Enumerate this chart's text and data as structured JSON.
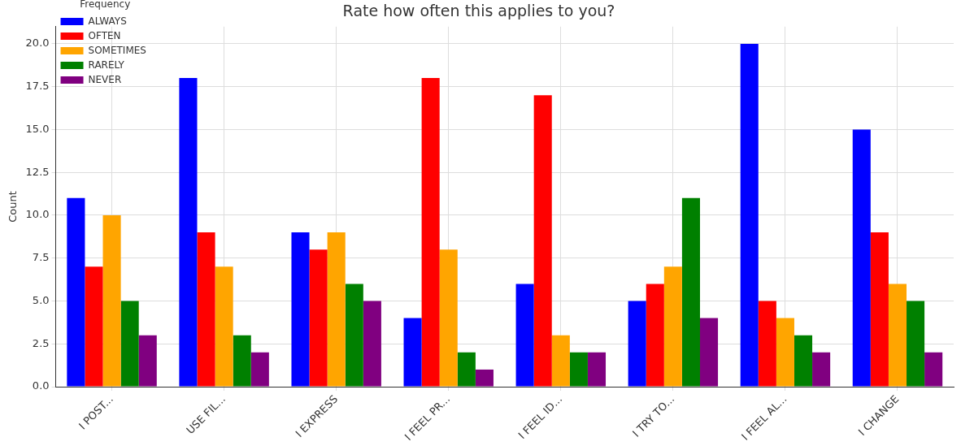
{
  "chart_data": {
    "type": "bar",
    "title": "Rate how often this applies to you?",
    "ylabel": "Count",
    "legend_title": "Frequency",
    "categories": [
      "I POST...",
      "USE FIL...",
      "I EXPRESS",
      "I FEEL PR...",
      "I FEEL ID...",
      "I TRY TO...",
      "I FEEL AL...",
      "I CHANGE"
    ],
    "series": [
      {
        "name": "ALWAYS",
        "color": "#0000ff",
        "values": [
          11,
          18,
          9,
          4,
          6,
          5,
          20,
          15
        ]
      },
      {
        "name": "OFTEN",
        "color": "#ff0000",
        "values": [
          7,
          9,
          8,
          18,
          17,
          6,
          5,
          9
        ]
      },
      {
        "name": "SOMETIMES",
        "color": "#ffa500",
        "values": [
          10,
          7,
          9,
          8,
          3,
          7,
          4,
          6
        ]
      },
      {
        "name": "RARELY",
        "color": "#008000",
        "values": [
          5,
          3,
          6,
          2,
          2,
          11,
          3,
          5
        ]
      },
      {
        "name": "NEVER",
        "color": "#800080",
        "values": [
          3,
          2,
          5,
          1,
          2,
          4,
          2,
          2
        ]
      }
    ],
    "ylim": [
      0,
      21
    ],
    "yticks": [
      {
        "value": 0,
        "label": "0.0"
      },
      {
        "value": 2.5,
        "label": "2.5"
      },
      {
        "value": 5,
        "label": "5.0"
      },
      {
        "value": 7.5,
        "label": "7.5"
      },
      {
        "value": 10,
        "label": "10.0"
      },
      {
        "value": 12.5,
        "label": "12.5"
      },
      {
        "value": 15,
        "label": "15.0"
      },
      {
        "value": 17.5,
        "label": "17.5"
      },
      {
        "value": 20,
        "label": "20.0"
      }
    ],
    "grid": true,
    "legend": "top left"
  }
}
